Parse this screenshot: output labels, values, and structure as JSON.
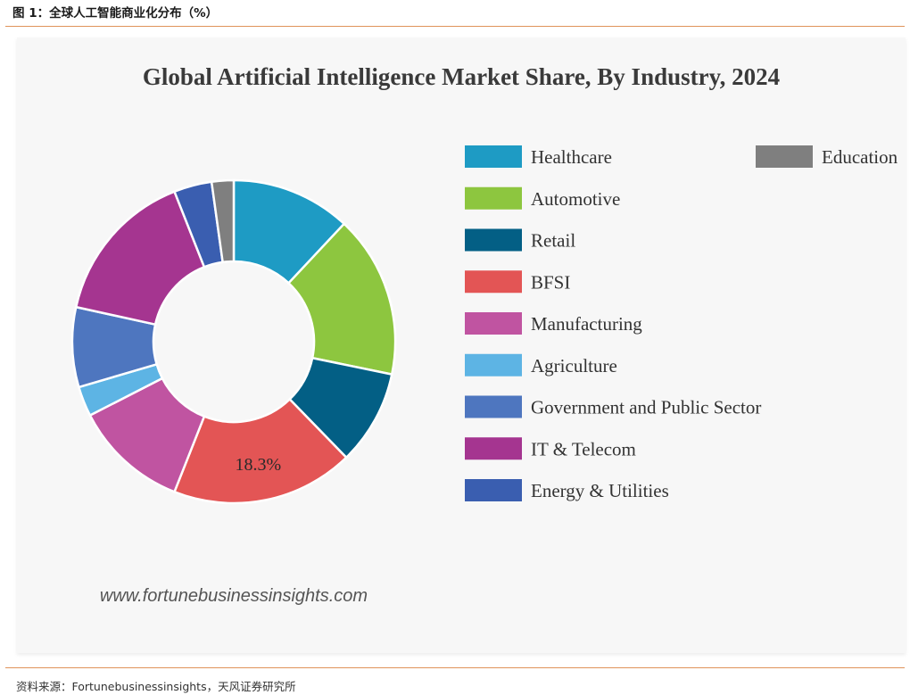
{
  "header": {
    "figure_caption": "图 1：全球人工智能商业化分布（%）"
  },
  "footer": {
    "source": "资料来源：Fortunebusinessinsights，天风证券研究所"
  },
  "watermark": "www.fortunebusinessinsights.com",
  "chart_data": {
    "type": "pie",
    "donut": true,
    "title": "Global Artificial Intelligence Market Share, By Industry, 2024",
    "legend_position": "right",
    "series": [
      {
        "name": "Healthcare",
        "value": 12.0,
        "color": "#1e9bc4"
      },
      {
        "name": "Automotive",
        "value": 16.3,
        "color": "#8dc63f"
      },
      {
        "name": "Retail",
        "value": 9.5,
        "color": "#035f85"
      },
      {
        "name": "BFSI",
        "value": 18.3,
        "color": "#e35555"
      },
      {
        "name": "Manufacturing",
        "value": 11.5,
        "color": "#c054a1"
      },
      {
        "name": "Agriculture",
        "value": 3.0,
        "color": "#5db4e4"
      },
      {
        "name": "Government and Public Sector",
        "value": 8.0,
        "color": "#4e76bf"
      },
      {
        "name": "IT & Telecom",
        "value": 15.6,
        "color": "#a53590"
      },
      {
        "name": "Energy & Utilities",
        "value": 3.8,
        "color": "#3a5eb0"
      },
      {
        "name": "Education",
        "value": 2.2,
        "color": "#7f7f7f"
      }
    ],
    "data_labels": [
      {
        "series": "BFSI",
        "text": "18.3%"
      }
    ]
  }
}
